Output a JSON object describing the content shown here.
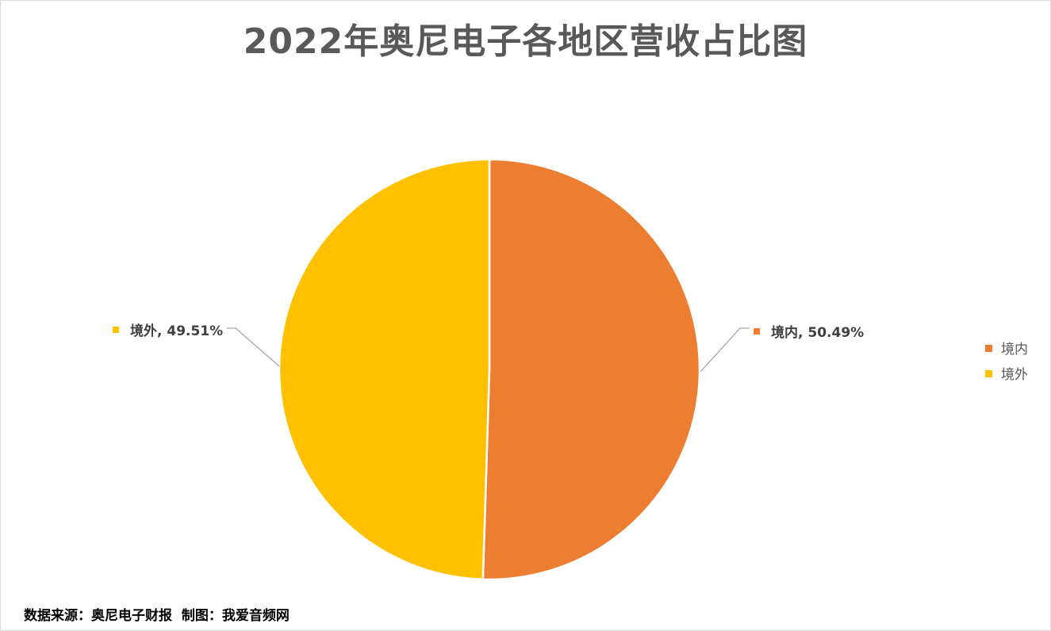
{
  "chart_data": {
    "type": "pie",
    "title": "2022年奥尼电子各地区营收占比图",
    "categories": [
      "境内",
      "境外"
    ],
    "values": [
      50.49,
      49.51
    ],
    "unit": "%",
    "colors": [
      "#ed7d31",
      "#ffc000"
    ],
    "data_labels": [
      "境内, 50.49%",
      "境外, 49.51%"
    ],
    "legend_position": "right",
    "start_angle_deg": 0,
    "direction": "clockwise"
  },
  "title": "2022年奥尼电子各地区营收占比图",
  "labels": {
    "inner": "境内, 50.49%",
    "outer": "境外, 49.51%"
  },
  "legend": {
    "items": [
      {
        "label": "境内",
        "color": "#ed7d31"
      },
      {
        "label": "境外",
        "color": "#ffc000"
      }
    ]
  },
  "footer": {
    "source": "数据来源：奥尼电子财报  制图：我爱音频网"
  }
}
